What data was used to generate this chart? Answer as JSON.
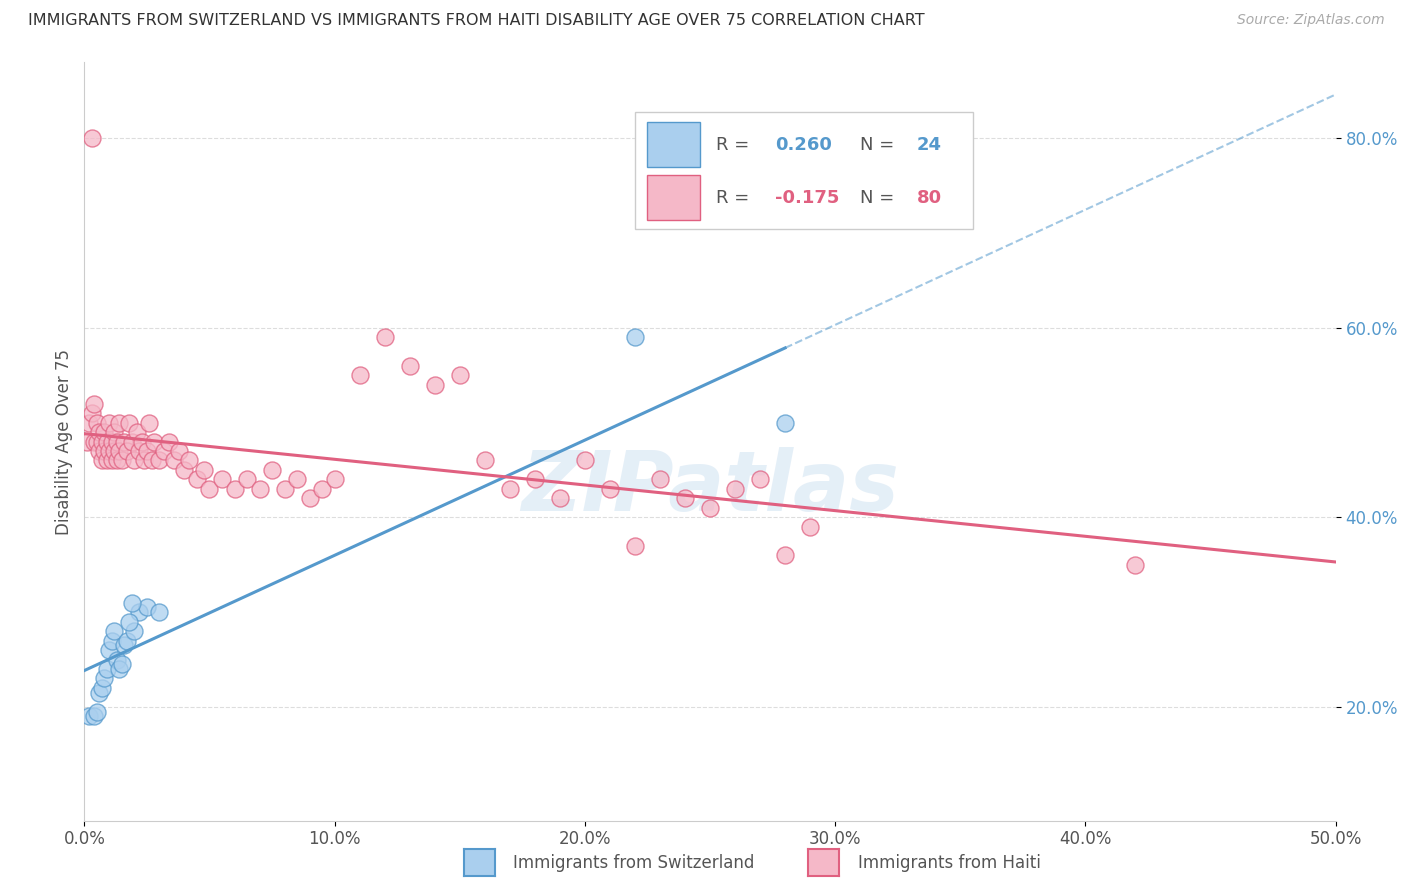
{
  "title": "IMMIGRANTS FROM SWITZERLAND VS IMMIGRANTS FROM HAITI DISABILITY AGE OVER 75 CORRELATION CHART",
  "source": "Source: ZipAtlas.com",
  "ylabel": "Disability Age Over 75",
  "xlim": [
    0.0,
    0.5
  ],
  "ylim": [
    0.08,
    0.88
  ],
  "xticks": [
    0.0,
    0.1,
    0.2,
    0.3,
    0.4,
    0.5
  ],
  "yticks": [
    0.2,
    0.4,
    0.6,
    0.8
  ],
  "ytick_labels": [
    "20.0%",
    "40.0%",
    "60.0%",
    "80.0%"
  ],
  "xtick_labels": [
    "0.0%",
    "10.0%",
    "20.0%",
    "30.0%",
    "40.0%",
    "50.0%"
  ],
  "color_switzerland": "#aacfee",
  "color_haiti": "#f5b8c8",
  "line_color_switzerland": "#5599cc",
  "line_color_haiti": "#e06080",
  "background_color": "#ffffff",
  "grid_color": "#dddddd",
  "watermark": "ZIPatlas",
  "switzerland_x": [
    0.002,
    0.004,
    0.005,
    0.006,
    0.007,
    0.008,
    0.009,
    0.01,
    0.011,
    0.012,
    0.013,
    0.014,
    0.015,
    0.016,
    0.017,
    0.02,
    0.022,
    0.025,
    0.018,
    0.019,
    0.03,
    0.28,
    0.22
  ],
  "switzerland_y": [
    0.19,
    0.19,
    0.195,
    0.215,
    0.22,
    0.23,
    0.24,
    0.26,
    0.27,
    0.28,
    0.25,
    0.24,
    0.245,
    0.265,
    0.27,
    0.28,
    0.3,
    0.305,
    0.29,
    0.31,
    0.3,
    0.5,
    0.59
  ],
  "haiti_x": [
    0.001,
    0.002,
    0.003,
    0.003,
    0.004,
    0.004,
    0.005,
    0.005,
    0.006,
    0.006,
    0.007,
    0.007,
    0.008,
    0.008,
    0.009,
    0.009,
    0.01,
    0.01,
    0.011,
    0.011,
    0.012,
    0.012,
    0.013,
    0.013,
    0.014,
    0.014,
    0.015,
    0.016,
    0.017,
    0.018,
    0.019,
    0.02,
    0.021,
    0.022,
    0.023,
    0.024,
    0.025,
    0.026,
    0.027,
    0.028,
    0.03,
    0.032,
    0.034,
    0.036,
    0.038,
    0.04,
    0.042,
    0.045,
    0.048,
    0.05,
    0.055,
    0.06,
    0.065,
    0.07,
    0.075,
    0.08,
    0.085,
    0.09,
    0.095,
    0.1,
    0.11,
    0.12,
    0.13,
    0.14,
    0.15,
    0.16,
    0.17,
    0.18,
    0.19,
    0.2,
    0.21,
    0.22,
    0.23,
    0.24,
    0.25,
    0.26,
    0.27,
    0.28,
    0.29,
    0.42
  ],
  "haiti_y": [
    0.48,
    0.5,
    0.51,
    0.8,
    0.52,
    0.48,
    0.5,
    0.48,
    0.49,
    0.47,
    0.48,
    0.46,
    0.47,
    0.49,
    0.46,
    0.48,
    0.47,
    0.5,
    0.48,
    0.46,
    0.47,
    0.49,
    0.48,
    0.46,
    0.47,
    0.5,
    0.46,
    0.48,
    0.47,
    0.5,
    0.48,
    0.46,
    0.49,
    0.47,
    0.48,
    0.46,
    0.47,
    0.5,
    0.46,
    0.48,
    0.46,
    0.47,
    0.48,
    0.46,
    0.47,
    0.45,
    0.46,
    0.44,
    0.45,
    0.43,
    0.44,
    0.43,
    0.44,
    0.43,
    0.45,
    0.43,
    0.44,
    0.42,
    0.43,
    0.44,
    0.55,
    0.59,
    0.56,
    0.54,
    0.55,
    0.46,
    0.43,
    0.44,
    0.42,
    0.46,
    0.43,
    0.37,
    0.44,
    0.42,
    0.41,
    0.43,
    0.44,
    0.36,
    0.39,
    0.35
  ]
}
